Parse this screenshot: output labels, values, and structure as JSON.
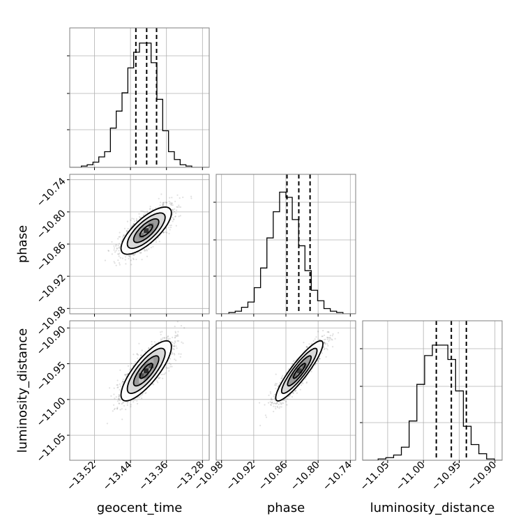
{
  "chart_data": {
    "type": "corner",
    "grid": true,
    "parameters": [
      {
        "name": "geocent_time",
        "label": "geocent_time",
        "range": [
          -13.575,
          -13.265
        ],
        "ticks": [
          -13.52,
          -13.44,
          -13.36,
          -13.28
        ],
        "tick_labels": [
          "−13.52",
          "−13.44",
          "−13.36",
          "−13.28"
        ],
        "mean": -13.405,
        "sigma": 0.028,
        "quantiles": [
          -13.428,
          -13.404,
          -13.382
        ],
        "histogram": [
          0.0,
          0.0,
          0.01,
          0.02,
          0.04,
          0.08,
          0.12,
          0.3,
          0.43,
          0.57,
          0.76,
          0.88,
          0.95,
          0.95,
          0.8,
          0.52,
          0.28,
          0.12,
          0.06,
          0.02,
          0.01,
          0.0,
          0.0,
          0.0
        ]
      },
      {
        "name": "phase",
        "label": "phase",
        "range": [
          -10.99,
          -10.73
        ],
        "ticks": [
          -10.98,
          -10.92,
          -10.86,
          -10.8,
          -10.74
        ],
        "tick_labels": [
          "−10.98",
          "−10.92",
          "−10.86",
          "−10.80",
          "−10.74"
        ],
        "mean": -10.835,
        "sigma": 0.022,
        "quantiles": [
          -10.858,
          -10.836,
          -10.815
        ],
        "histogram": [
          0.0,
          0.0,
          0.01,
          0.02,
          0.05,
          0.09,
          0.2,
          0.35,
          0.58,
          0.78,
          0.93,
          0.89,
          0.72,
          0.52,
          0.33,
          0.18,
          0.1,
          0.04,
          0.02,
          0.01,
          0.0,
          0.0
        ]
      },
      {
        "name": "luminosity_distance",
        "label": "luminosity_distance",
        "range": [
          -11.085,
          -10.89
        ],
        "ticks": [
          -11.05,
          -11.0,
          -10.95,
          -10.9
        ],
        "tick_labels": [
          "−11.05",
          "−11.00",
          "−10.95",
          "−10.90"
        ],
        "mean": -10.96,
        "sigma": 0.021,
        "quantiles": [
          -10.982,
          -10.961,
          -10.94
        ],
        "histogram": [
          0.0,
          0.0,
          0.01,
          0.02,
          0.04,
          0.1,
          0.3,
          0.58,
          0.8,
          0.88,
          0.88,
          0.77,
          0.53,
          0.26,
          0.12,
          0.05,
          0.01,
          0.0
        ]
      }
    ],
    "correlations": {
      "phase_vs_geocent_time": 0.75,
      "luminosity_distance_vs_geocent_time": 0.8,
      "luminosity_distance_vs_phase": 0.9
    },
    "contour_levels_sigma": [
      0.5,
      1,
      1.5,
      2
    ]
  }
}
